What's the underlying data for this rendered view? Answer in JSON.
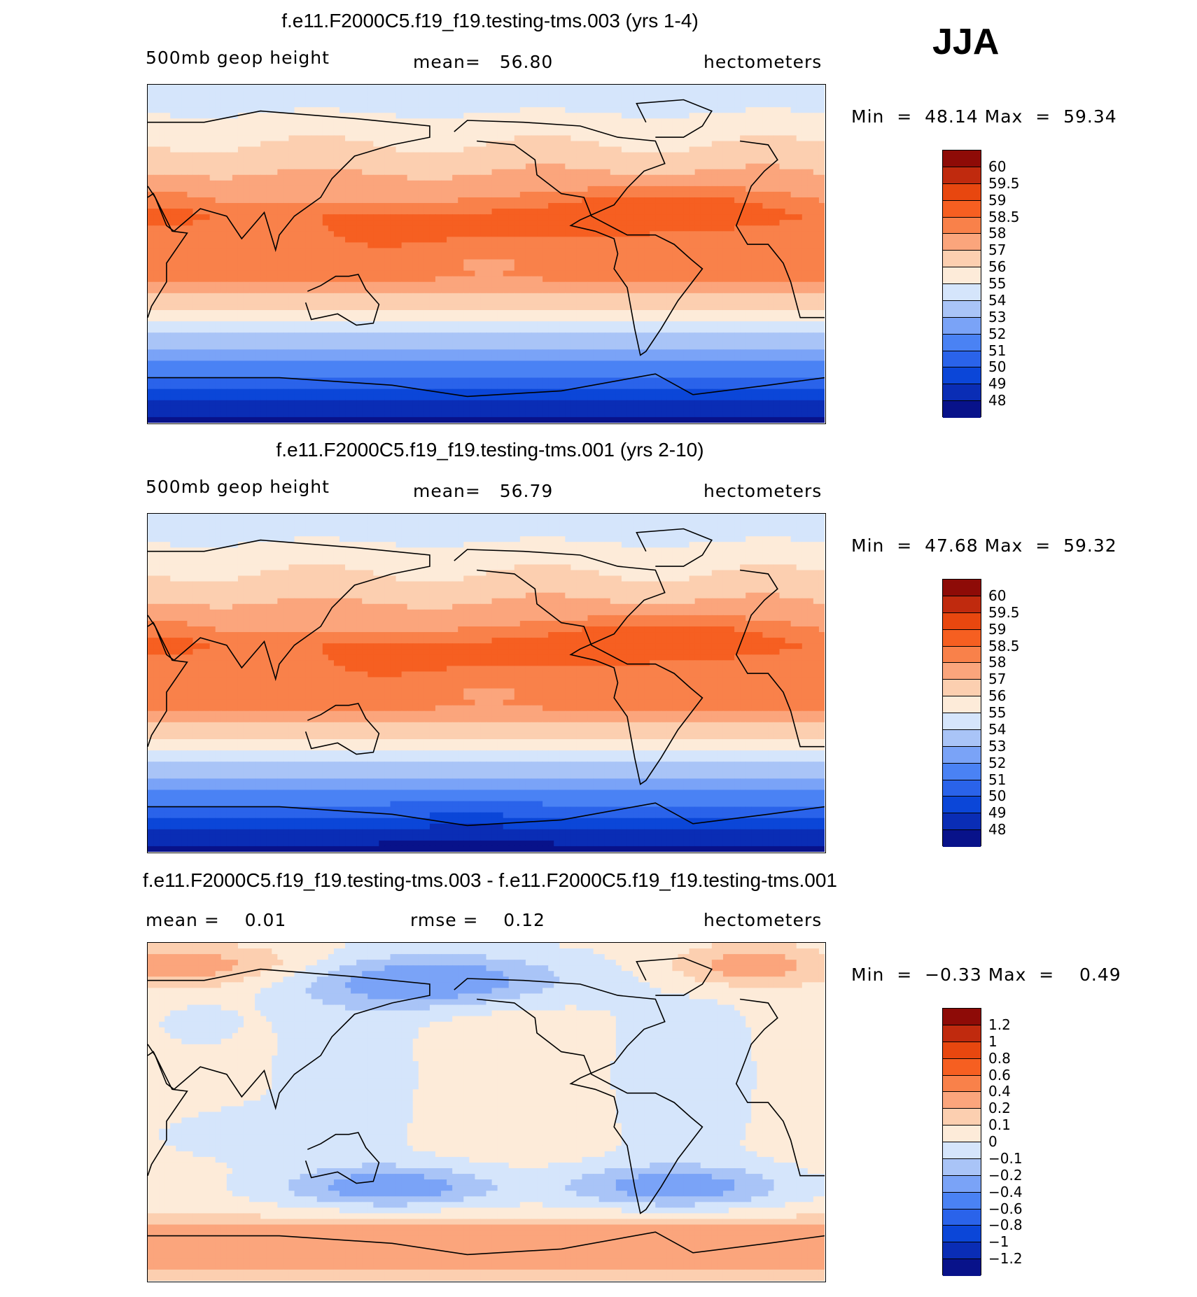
{
  "season": "JJA",
  "colors": {
    "sequential": [
      "#08128a",
      "#0a2db5",
      "#0b46d8",
      "#2a63ea",
      "#4a82f4",
      "#7aa3f7",
      "#a9c4f7",
      "#d5e5fb",
      "#fdebd9",
      "#fccfb0",
      "#fba57c",
      "#f9814a",
      "#f65f21",
      "#e8470f",
      "#c02a0e",
      "#8e0b07"
    ],
    "diverging": [
      "#08128a",
      "#0a2db5",
      "#0b46d8",
      "#2a63ea",
      "#4a82f4",
      "#7aa3f7",
      "#a9c4f7",
      "#d5e5fb",
      "#fdebd9",
      "#fccfb0",
      "#fba57c",
      "#f9814a",
      "#f65f21",
      "#e8470f",
      "#c02a0e",
      "#8e0b07"
    ]
  },
  "chart_data": [
    {
      "type": "heatmap",
      "title": "f.e11.F2000C5.f19_f19.testing-tms.003 (yrs 1-4)",
      "variable": "500mb  geop  height",
      "mean_label": "mean=",
      "mean_value": "56.80",
      "units": "hectometers",
      "min_label": "Min  =",
      "min_value": "48.14",
      "max_label": "Max  =",
      "max_value": "59.34",
      "colorbar_levels": [
        "60",
        "59.5",
        "59",
        "58.5",
        "58",
        "57",
        "56",
        "55",
        "54",
        "53",
        "52",
        "51",
        "50",
        "49",
        "48"
      ],
      "field": "height",
      "lat_range": [
        -90,
        90
      ],
      "lon_range": [
        30,
        390
      ]
    },
    {
      "type": "heatmap",
      "title": "f.e11.F2000C5.f19_f19.testing-tms.001 (yrs 2-10)",
      "variable": "500mb  geop  height",
      "mean_label": "mean=",
      "mean_value": "56.79",
      "units": "hectometers",
      "min_label": "Min  =",
      "min_value": "47.68",
      "max_label": "Max  =",
      "max_value": "59.32",
      "colorbar_levels": [
        "60",
        "59.5",
        "59",
        "58.5",
        "58",
        "57",
        "56",
        "55",
        "54",
        "53",
        "52",
        "51",
        "50",
        "49",
        "48"
      ],
      "field": "height2",
      "lat_range": [
        -90,
        90
      ],
      "lon_range": [
        30,
        390
      ]
    },
    {
      "type": "heatmap",
      "title": "f.e11.F2000C5.f19_f19.testing-tms.003 - f.e11.F2000C5.f19_f19.testing-tms.001",
      "mean_label": "mean  =",
      "mean_value": "0.01",
      "rmse_label": "rmse  =",
      "rmse_value": "0.12",
      "units": "hectometers",
      "min_label": "Min  =",
      "min_value": "−0.33",
      "max_label": "Max  =",
      "max_value": "0.49",
      "colorbar_levels": [
        "1.2",
        "1",
        "0.8",
        "0.6",
        "0.4",
        "0.2",
        "0.1",
        "0",
        "−0.1",
        "−0.2",
        "−0.4",
        "−0.6",
        "−0.8",
        "−1",
        "−1.2"
      ],
      "field": "diff",
      "lat_range": [
        -90,
        90
      ],
      "lon_range": [
        30,
        390
      ]
    }
  ]
}
